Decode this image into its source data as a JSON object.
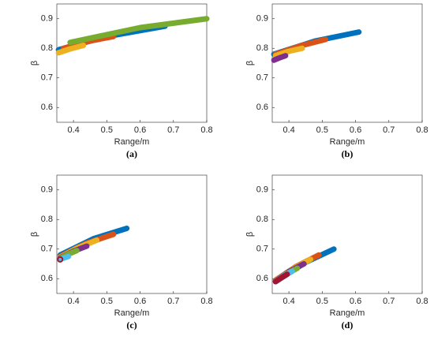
{
  "chart_data": [
    {
      "type": "line",
      "caption": "(a)",
      "xlabel": "Range/m",
      "ylabel": "β",
      "xlim": [
        0.35,
        0.8
      ],
      "ylim": [
        0.55,
        0.95
      ],
      "xticks": [
        0.4,
        0.5,
        0.6,
        0.7,
        0.8
      ],
      "yticks": [
        0.6,
        0.7,
        0.8,
        0.9
      ],
      "series": [
        {
          "color": "#0072BD",
          "x": [
            0.355,
            0.5,
            0.675
          ],
          "values": [
            0.795,
            0.84,
            0.875
          ]
        },
        {
          "color": "#D95319",
          "x": [
            0.37,
            0.45,
            0.52
          ],
          "values": [
            0.8,
            0.825,
            0.84
          ]
        },
        {
          "color": "#EDB120",
          "x": [
            0.355,
            0.39,
            0.43
          ],
          "values": [
            0.785,
            0.798,
            0.81
          ]
        },
        {
          "color": "#77AC30",
          "x": [
            0.39,
            0.6,
            0.8
          ],
          "values": [
            0.82,
            0.87,
            0.9
          ]
        }
      ]
    },
    {
      "type": "line",
      "caption": "(b)",
      "xlabel": "Range/m",
      "ylabel": "β",
      "xlim": [
        0.35,
        0.8
      ],
      "ylim": [
        0.55,
        0.95
      ],
      "xticks": [
        0.4,
        0.5,
        0.6,
        0.7,
        0.8
      ],
      "yticks": [
        0.6,
        0.7,
        0.8,
        0.9
      ],
      "series": [
        {
          "color": "#0072BD",
          "x": [
            0.355,
            0.48,
            0.61
          ],
          "values": [
            0.78,
            0.825,
            0.855
          ]
        },
        {
          "color": "#D95319",
          "x": [
            0.36,
            0.44,
            0.51
          ],
          "values": [
            0.78,
            0.81,
            0.83
          ]
        },
        {
          "color": "#EDB120",
          "x": [
            0.36,
            0.4,
            0.44
          ],
          "values": [
            0.775,
            0.79,
            0.8
          ]
        },
        {
          "color": "#7E2F8E",
          "x": [
            0.355,
            0.37,
            0.39
          ],
          "values": [
            0.76,
            0.767,
            0.775
          ]
        }
      ]
    },
    {
      "type": "line",
      "caption": "(c)",
      "xlabel": "Range/m",
      "ylabel": "β",
      "xlim": [
        0.35,
        0.8
      ],
      "ylim": [
        0.55,
        0.95
      ],
      "xticks": [
        0.4,
        0.5,
        0.6,
        0.7,
        0.8
      ],
      "yticks": [
        0.6,
        0.7,
        0.8,
        0.9
      ],
      "series": [
        {
          "color": "#0072BD",
          "x": [
            0.36,
            0.46,
            0.56
          ],
          "values": [
            0.68,
            0.735,
            0.77
          ]
        },
        {
          "color": "#D95319",
          "x": [
            0.36,
            0.44,
            0.52
          ],
          "values": [
            0.675,
            0.72,
            0.75
          ]
        },
        {
          "color": "#EDB120",
          "x": [
            0.36,
            0.41,
            0.47
          ],
          "values": [
            0.672,
            0.703,
            0.73
          ]
        },
        {
          "color": "#7E2F8E",
          "x": [
            0.36,
            0.4,
            0.44
          ],
          "values": [
            0.67,
            0.693,
            0.71
          ]
        },
        {
          "color": "#77AC30",
          "x": [
            0.36,
            0.385,
            0.41
          ],
          "values": [
            0.668,
            0.683,
            0.695
          ]
        },
        {
          "color": "#4DBEEE",
          "x": [
            0.36,
            0.372,
            0.385
          ],
          "values": [
            0.666,
            0.67,
            0.675
          ]
        },
        {
          "color": "#A2142F",
          "x": [
            0.36
          ],
          "values": [
            0.665
          ]
        }
      ]
    },
    {
      "type": "line",
      "caption": "(d)",
      "xlabel": "Range/m",
      "ylabel": "β",
      "xlim": [
        0.35,
        0.8
      ],
      "ylim": [
        0.55,
        0.95
      ],
      "xticks": [
        0.4,
        0.5,
        0.6,
        0.7,
        0.8
      ],
      "yticks": [
        0.6,
        0.7,
        0.8,
        0.9
      ],
      "series": [
        {
          "color": "#0072BD",
          "x": [
            0.36,
            0.45,
            0.535
          ],
          "values": [
            0.59,
            0.655,
            0.7
          ]
        },
        {
          "color": "#D95319",
          "x": [
            0.36,
            0.42,
            0.49
          ],
          "values": [
            0.595,
            0.64,
            0.68
          ]
        },
        {
          "color": "#EDB120",
          "x": [
            0.36,
            0.41,
            0.465
          ],
          "values": [
            0.593,
            0.632,
            0.665
          ]
        },
        {
          "color": "#7E2F8E",
          "x": [
            0.36,
            0.4,
            0.445
          ],
          "values": [
            0.592,
            0.624,
            0.65
          ]
        },
        {
          "color": "#77AC30",
          "x": [
            0.36,
            0.39,
            0.425
          ],
          "values": [
            0.591,
            0.615,
            0.635
          ]
        },
        {
          "color": "#4DBEEE",
          "x": [
            0.36,
            0.385,
            0.41
          ],
          "values": [
            0.59,
            0.61,
            0.625
          ]
        },
        {
          "color": "#A2142F",
          "x": [
            0.36,
            0.38,
            0.395
          ],
          "values": [
            0.59,
            0.605,
            0.615
          ]
        }
      ]
    }
  ]
}
